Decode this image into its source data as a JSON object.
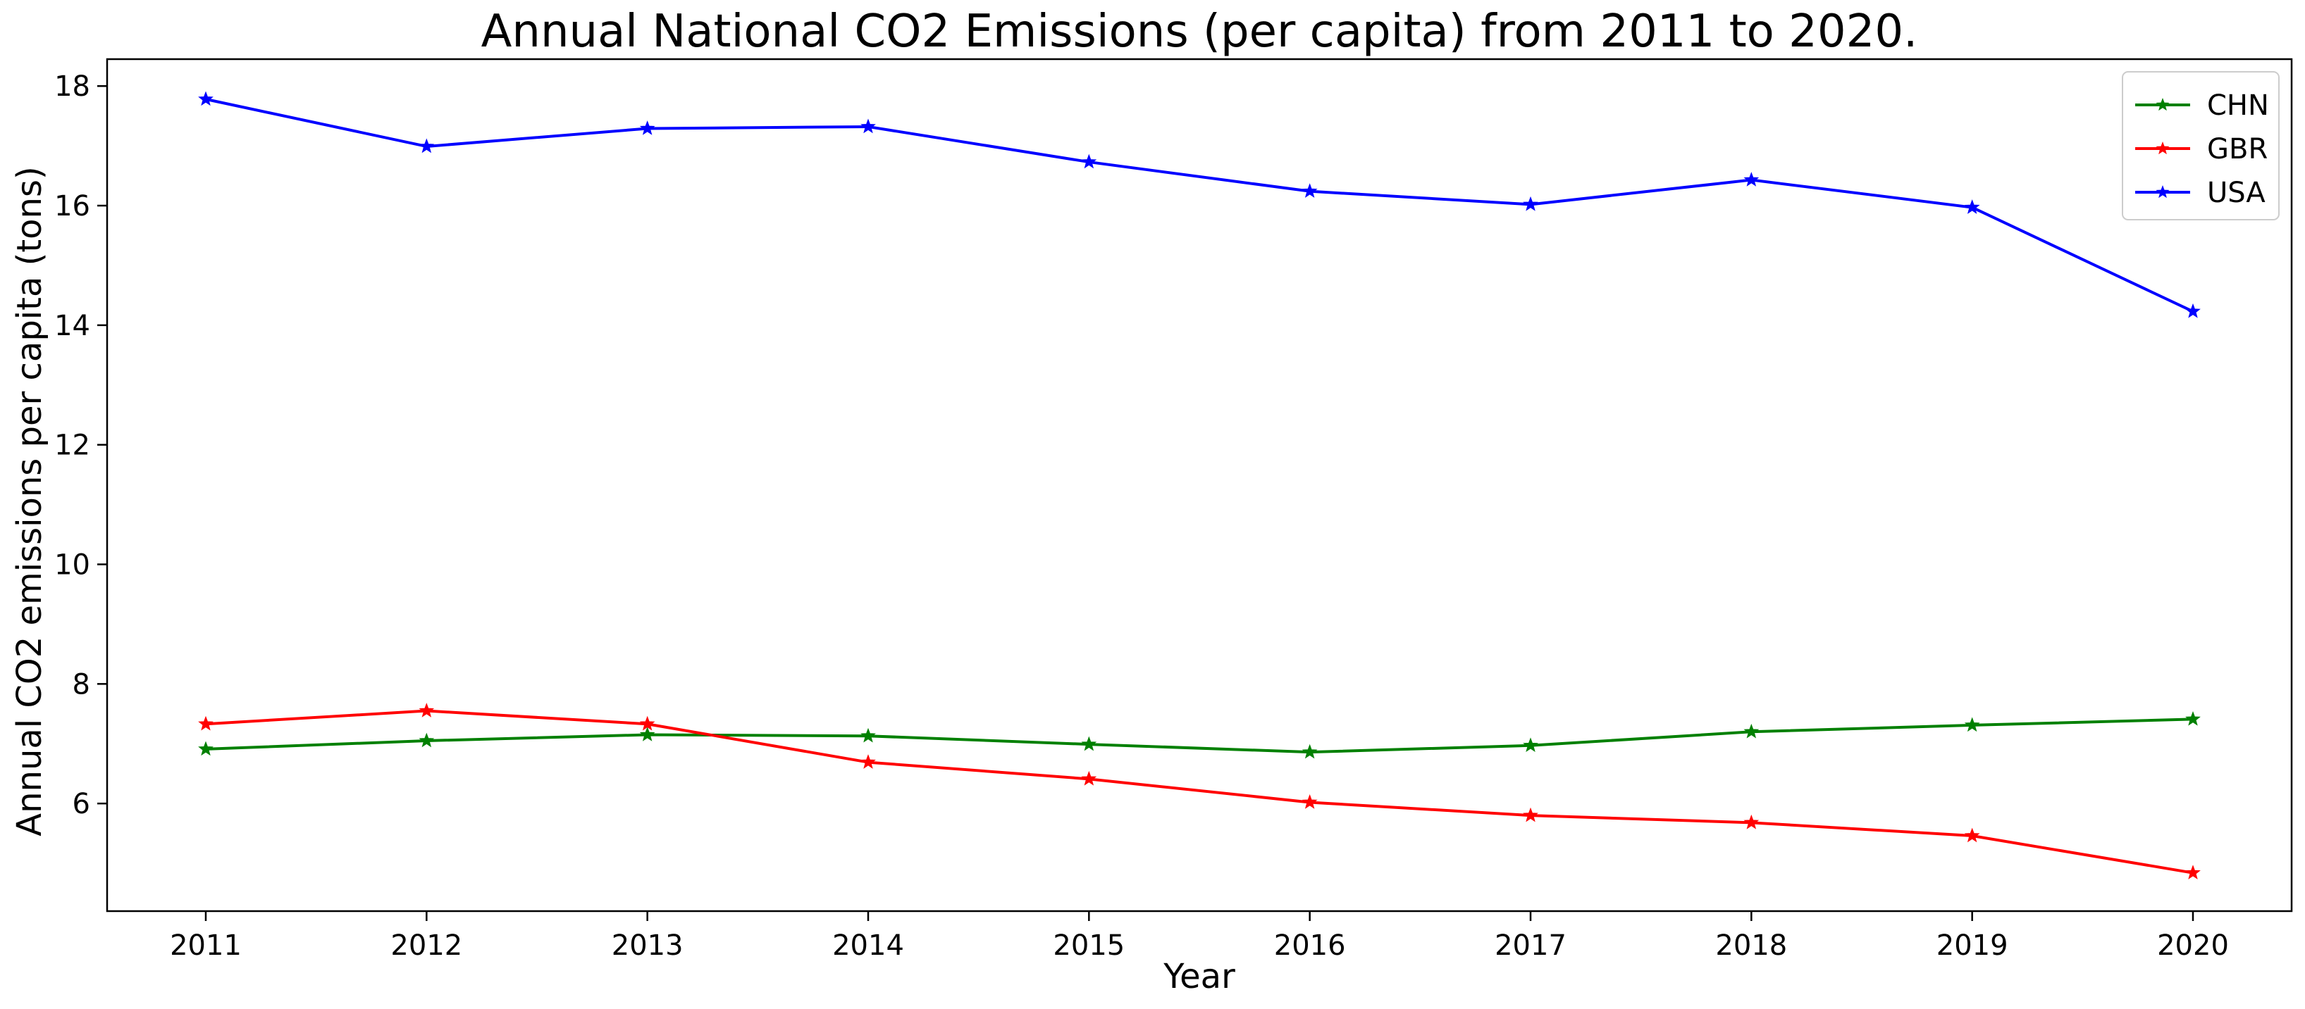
{
  "chart_data": {
    "type": "line",
    "title": "Annual National CO2 Emissions (per capita) from 2011 to 2020.",
    "xlabel": "Year",
    "ylabel": "Annual CO2 emissions per capita (tons)",
    "x": [
      "2011",
      "2012",
      "2013",
      "2014",
      "2015",
      "2016",
      "2017",
      "2018",
      "2019",
      "2020"
    ],
    "ylim": [
      4.2,
      18.45
    ],
    "yticks": [
      "6",
      "8",
      "10",
      "12",
      "14",
      "16",
      "18"
    ],
    "grid": false,
    "legend_position": "top-right",
    "marker": "star",
    "series": [
      {
        "name": "CHN",
        "color": "#008000",
        "values": [
          6.91,
          7.05,
          7.15,
          7.13,
          6.99,
          6.86,
          6.97,
          7.2,
          7.31,
          7.41
        ]
      },
      {
        "name": "GBR",
        "color": "#ff0000",
        "values": [
          7.33,
          7.55,
          7.33,
          6.69,
          6.41,
          6.02,
          5.8,
          5.68,
          5.46,
          4.84
        ]
      },
      {
        "name": "USA",
        "color": "#0000ff",
        "values": [
          17.78,
          16.99,
          17.29,
          17.32,
          16.73,
          16.24,
          16.02,
          16.43,
          15.97,
          14.23
        ]
      }
    ]
  }
}
